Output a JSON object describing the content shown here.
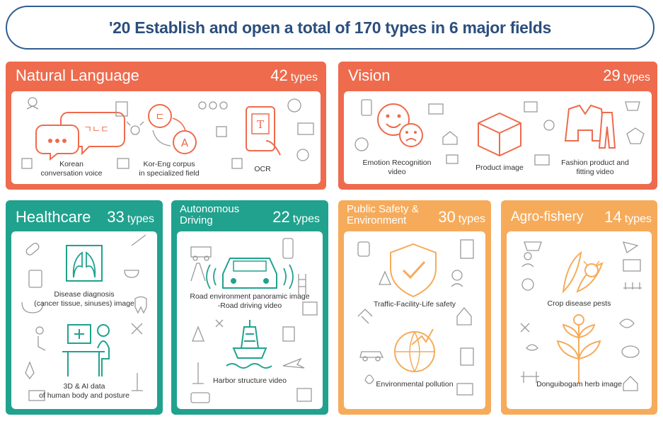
{
  "banner": {
    "title": "'20 Establish and open a total of 170 types in 6 major fields"
  },
  "panels": [
    {
      "key": "nl",
      "title": "Natural Language",
      "count": "42",
      "unit": "types",
      "color": "#ee6b4d",
      "items": [
        "Korean\nconversation voice",
        "Kor-Eng corpus\nin specialized field",
        "OCR"
      ]
    },
    {
      "key": "vision",
      "title": "Vision",
      "count": "29",
      "unit": "types",
      "color": "#ee6b4d",
      "items": [
        "Emotion Recognition\nvideo",
        "Product image",
        "Fashion product and\nfitting video"
      ]
    },
    {
      "key": "health",
      "title": "Healthcare",
      "count": "33",
      "unit": "types",
      "color": "#20a28e",
      "items": [
        "Disease diagnosis\n(cancer tissue, sinuses) image",
        "3D & AI data\nof human body and posture"
      ]
    },
    {
      "key": "auto",
      "title": "Autonomous\nDriving",
      "count": "22",
      "unit": "types",
      "color": "#20a28e",
      "items": [
        "Road environment panoramic image\n-Road driving video",
        "Harbor structure video"
      ]
    },
    {
      "key": "safety",
      "title": "Public Safety &\nEnvironment",
      "count": "30",
      "unit": "types",
      "color": "#f6ab5b",
      "items": [
        "Traffic-Facility-Life safety",
        "Environmental pollution"
      ]
    },
    {
      "key": "agro",
      "title": "Agro-fishery",
      "count": "14",
      "unit": "types",
      "color": "#f6ab5b",
      "items": [
        "Crop disease pests",
        "Donguibogam herb image"
      ]
    }
  ],
  "icon_text": {
    "korean_bubble": "ㄱㄴㄷ",
    "korean_char": "ㄷ",
    "latin_a": "A",
    "ocr_t": "T"
  }
}
